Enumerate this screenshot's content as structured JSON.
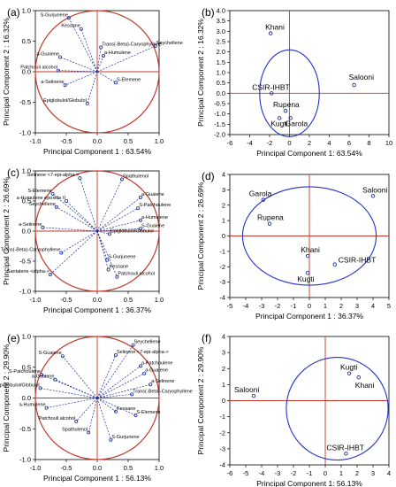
{
  "figure": {
    "colors": {
      "circle": "#c0392b",
      "vectors": "#1f2f9b",
      "axes": "#000000",
      "markers": "#1f2f9b",
      "background": "#ffffff"
    }
  },
  "chart_data": [
    {
      "panel": "(a)",
      "type": "scatter",
      "subtype": "loading-plot",
      "xlabel": "Principal Component 1 : 63.54%",
      "ylabel": "Principal Component 2 : 16.32%",
      "xlim": [
        -1.0,
        1.0
      ],
      "ylim": [
        -1.0,
        1.0
      ],
      "xticks": [
        "-1.0",
        "-0.5",
        "0.0",
        "0.5",
        "1.0"
      ],
      "yticks": [
        "-1.0",
        "-0.5",
        "0.0",
        "0.5",
        "1.0"
      ],
      "unit_circle": true,
      "points": [
        {
          "label": "S-Gurjunene",
          "x": -0.46,
          "y": 0.88
        },
        {
          "label": "Kessane",
          "x": -0.26,
          "y": 0.7
        },
        {
          "label": "Trans(-Beta)-Caryophyllene",
          "x": 0.06,
          "y": 0.4
        },
        {
          "label": "a-Humulene",
          "x": 0.1,
          "y": 0.26
        },
        {
          "label": "a-Guaiene",
          "x": -0.6,
          "y": 0.24
        },
        {
          "label": "Patchouli alcohol",
          "x": -0.63,
          "y": 0.02
        },
        {
          "label": "a-Selinene",
          "x": -0.52,
          "y": -0.22
        },
        {
          "label": "S-Elemene",
          "x": 0.3,
          "y": -0.18
        },
        {
          "label": "Epiglobulol/Globulol",
          "x": -0.16,
          "y": -0.52
        },
        {
          "label": "Seychellene",
          "x": 0.94,
          "y": 0.42
        }
      ]
    },
    {
      "panel": "(b)",
      "type": "scatter",
      "subtype": "score-plot",
      "xlabel": "Principal Component 1: 63.54%",
      "ylabel": "Principal Component 2 : 16.32%",
      "xlim": [
        -6,
        10
      ],
      "ylim": [
        -2.0,
        4.0
      ],
      "xticks": [
        "-6",
        "-4",
        "-2",
        "0",
        "2",
        "4",
        "6",
        "8",
        "10"
      ],
      "yticks": [
        "-2.0",
        "-1.5",
        "-1.0",
        "-0.5",
        "0.0",
        "0.5",
        "1.0",
        "1.5",
        "2.0",
        "2.5",
        "3.0",
        "3.5",
        "4.0"
      ],
      "points": [
        {
          "label": "Khani",
          "x": -1.9,
          "y": 2.9
        },
        {
          "label": "Salooni",
          "x": 6.5,
          "y": 0.4
        },
        {
          "label": "CSIR-IHBT",
          "x": -1.8,
          "y": 0.0
        },
        {
          "label": "Rupena",
          "x": -0.4,
          "y": -0.85
        },
        {
          "label": "Kugti",
          "x": -1.0,
          "y": -1.2
        },
        {
          "label": "Garola",
          "x": 0.1,
          "y": -1.2
        }
      ]
    },
    {
      "panel": "(c)",
      "type": "scatter",
      "subtype": "loading-plot",
      "xlabel": "Principal Component 1 : 36.37%",
      "ylabel": "Principal Component 2 : 26.69%",
      "xlim": [
        -1.0,
        1.0
      ],
      "ylim": [
        -1.0,
        1.0
      ],
      "xticks": [
        "-1.0",
        "-0.5",
        "0.0",
        "0.5",
        "1.0"
      ],
      "yticks": [
        "-1.0",
        "-0.5",
        "0.0",
        "0.5",
        "1.0"
      ],
      "unit_circle": true,
      "points": [
        {
          "label": "Selinene <7-epi-alpha->",
          "x": -0.28,
          "y": 0.88
        },
        {
          "label": "Spathulenol",
          "x": 0.4,
          "y": 0.86
        },
        {
          "label": "S-Elemene",
          "x": -0.72,
          "y": 0.62
        },
        {
          "label": "a-Humulene epoxide II",
          "x": -0.5,
          "y": 0.5
        },
        {
          "label": "Seychellene",
          "x": -0.66,
          "y": 0.4
        },
        {
          "label": "a-Guaiene",
          "x": 0.7,
          "y": 0.56
        },
        {
          "label": "S-Patchoulene",
          "x": 0.66,
          "y": 0.38
        },
        {
          "label": "a-Humulene",
          "x": 0.7,
          "y": 0.18
        },
        {
          "label": "S-Guaiene",
          "x": 0.7,
          "y": 0.04
        },
        {
          "label": "a-Selinene",
          "x": -0.88,
          "y": 0.06
        },
        {
          "label": "Epiglobulol/Globulol",
          "x": 0.2,
          "y": -0.05
        },
        {
          "label": "Trans(-Beta)-Caryophyllene",
          "x": -0.58,
          "y": -0.36
        },
        {
          "label": "S-Gurjunene",
          "x": 0.16,
          "y": -0.48
        },
        {
          "label": "Kessane",
          "x": 0.18,
          "y": -0.64
        },
        {
          "label": "Santalene <alpha->",
          "x": -0.76,
          "y": -0.72
        },
        {
          "label": "Patchouli alcohol",
          "x": 0.32,
          "y": -0.76
        }
      ]
    },
    {
      "panel": "(d)",
      "type": "scatter",
      "subtype": "score-plot",
      "xlabel": "Principal Component 1 : 36.37%",
      "ylabel": "Principal Component 2 : 26.69%",
      "xlim": [
        -5,
        5
      ],
      "ylim": [
        -4,
        4
      ],
      "xticks": [
        "-5",
        "-4",
        "-3",
        "-2",
        "-1",
        "0",
        "1",
        "2",
        "3",
        "4",
        "5"
      ],
      "yticks": [
        "-4",
        "-3",
        "-2",
        "-1",
        "0",
        "1",
        "2",
        "3",
        "4"
      ],
      "points": [
        {
          "label": "Salooni",
          "x": 4.0,
          "y": 2.6
        },
        {
          "label": "Garola",
          "x": -2.9,
          "y": 2.35
        },
        {
          "label": "Rupena",
          "x": -2.5,
          "y": 0.8
        },
        {
          "label": "Khani",
          "x": -0.1,
          "y": -1.3
        },
        {
          "label": "CSIR-IHBT",
          "x": 1.6,
          "y": -1.85
        },
        {
          "label": "Kugti",
          "x": -0.1,
          "y": -2.4
        }
      ]
    },
    {
      "panel": "(e)",
      "type": "scatter",
      "subtype": "loading-plot",
      "xlabel": "Principal Component 1 : 56.13%",
      "ylabel": "Principal Component 2 : 29.90%",
      "xlim": [
        -1.0,
        1.0
      ],
      "ylim": [
        -1.0,
        1.0
      ],
      "xticks": [
        "-1.0",
        "-0.5",
        "0.0",
        "0.5",
        "1.0"
      ],
      "yticks": [
        "-1.0",
        "-0.5",
        "0.0",
        "0.5",
        "1.0"
      ],
      "unit_circle": true,
      "points": [
        {
          "label": "Seychellene",
          "x": 0.58,
          "y": 0.86
        },
        {
          "label": "Selinene <7-epi-alpha->",
          "x": 0.3,
          "y": 0.7
        },
        {
          "label": "S-Guaiene",
          "x": -0.56,
          "y": 0.68
        },
        {
          "label": "a-Patchoulene",
          "x": 0.7,
          "y": 0.52
        },
        {
          "label": "a-Guaiene",
          "x": 0.76,
          "y": 0.4
        },
        {
          "label": "a-Selinene",
          "x": 0.86,
          "y": 0.22
        },
        {
          "label": "S-Patchoulene",
          "x": -0.9,
          "y": 0.38
        },
        {
          "label": "a-Guaiene",
          "x": -0.68,
          "y": 0.3
        },
        {
          "label": "Epiglobulol/Globulol",
          "x": -0.92,
          "y": 0.16
        },
        {
          "label": "Trans(-Beta)-Caryophyllene",
          "x": 0.56,
          "y": 0.06
        },
        {
          "label": "a-Humulene",
          "x": -0.82,
          "y": -0.16
        },
        {
          "label": "Kessane",
          "x": 0.3,
          "y": -0.22
        },
        {
          "label": "S-Elemene",
          "x": 0.62,
          "y": -0.28
        },
        {
          "label": "Patchouli alcohol",
          "x": -0.34,
          "y": -0.38
        },
        {
          "label": "Spathulenol",
          "x": -0.14,
          "y": -0.56
        },
        {
          "label": "S-Gurjunene",
          "x": 0.22,
          "y": -0.68
        }
      ]
    },
    {
      "panel": "(f)",
      "type": "scatter",
      "subtype": "score-plot",
      "xlabel": "Principal Component 1: 56.13%",
      "ylabel": "Principal Component 2 : 29.90%",
      "xlim": [
        -6,
        4
      ],
      "ylim": [
        -4,
        4
      ],
      "xticks": [
        "-6",
        "-5",
        "-4",
        "-3",
        "-2",
        "-1",
        "0",
        "1",
        "2",
        "3",
        "4"
      ],
      "yticks": [
        "-4",
        "-3",
        "-2",
        "-1",
        "0",
        "1",
        "2",
        "3",
        "4"
      ],
      "points": [
        {
          "label": "Kugti",
          "x": 1.5,
          "y": 1.7
        },
        {
          "label": "Khani",
          "x": 2.1,
          "y": 1.45
        },
        {
          "label": "Salooni",
          "x": -4.5,
          "y": 0.3
        },
        {
          "label": "CSIR-IHBT",
          "x": 1.3,
          "y": -3.3
        }
      ]
    }
  ]
}
